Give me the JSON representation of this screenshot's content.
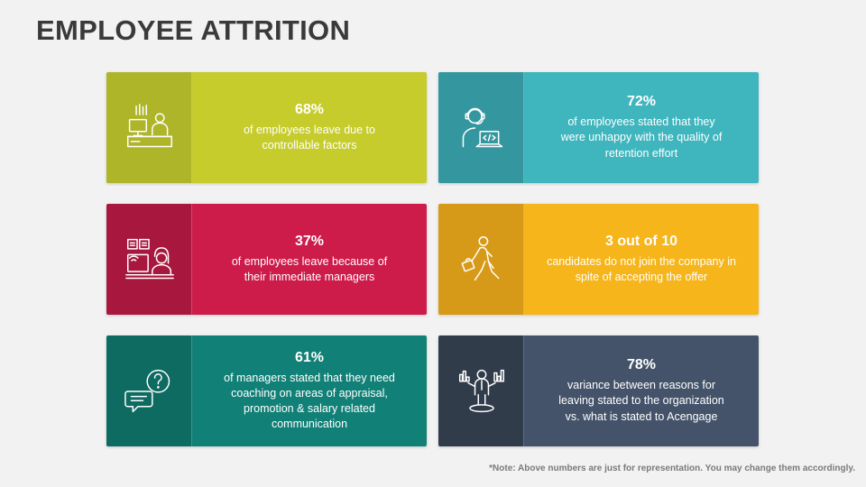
{
  "title": "EMPLOYEE ATTRITION",
  "note": "*Note: Above numbers are just for representation. You may change them accordingly.",
  "cards": [
    {
      "stat": "68%",
      "desc": "of employees leave due to controllable factors",
      "color": "#c6cc2b",
      "icon_color": "#aeb529",
      "icon": "desk-worker-icon"
    },
    {
      "stat": "72%",
      "desc": "of employees stated that they were unhappy with the quality of retention effort",
      "color": "#3fb5be",
      "icon_color": "#3497a0",
      "icon": "developer-laptop-icon"
    },
    {
      "stat": "37%",
      "desc": "of employees leave because of their immediate managers",
      "color": "#cd1b4a",
      "icon_color": "#a8183e",
      "icon": "online-learning-icon"
    },
    {
      "stat": "3 out of 10",
      "desc": "candidates do not join the company in spite of accepting the offer",
      "color": "#f6b51a",
      "icon_color": "#d79a18",
      "icon": "walking-person-icon"
    },
    {
      "stat": "61%",
      "desc": "of managers stated that they need coaching on areas of appraisal, promotion & salary related communication",
      "color": "#118077",
      "icon_color": "#0e6b62",
      "icon": "question-chat-icon"
    },
    {
      "stat": "78%",
      "desc": "variance between reasons for leaving stated to the organization vs. what is stated to Acengage",
      "color": "#44536a",
      "icon_color": "#313c4b",
      "icon": "analyst-icon"
    }
  ]
}
